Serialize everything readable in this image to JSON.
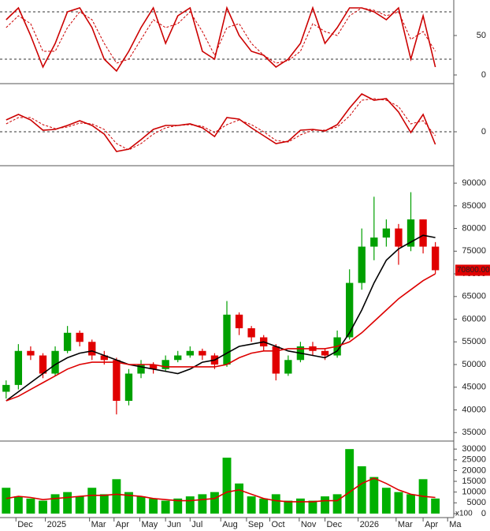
{
  "chart_data": [
    {
      "type": "line",
      "ylim": [
        -9,
        93
      ],
      "yticks": [
        0,
        50
      ],
      "levels": [
        20,
        80
      ],
      "series": [
        {
          "color": "#cc0000",
          "values": [
            70,
            85,
            50,
            10,
            40,
            80,
            85,
            60,
            20,
            5,
            30,
            60,
            85,
            40,
            75,
            85,
            30,
            20,
            85,
            50,
            30,
            25,
            10,
            20,
            40,
            85,
            40,
            60,
            85,
            85,
            80,
            70,
            85,
            20,
            75,
            10
          ]
        },
        {
          "color": "#cc0000",
          "dashed": true,
          "values": [
            60,
            75,
            65,
            30,
            30,
            60,
            80,
            70,
            40,
            15,
            20,
            45,
            70,
            60,
            65,
            80,
            55,
            25,
            60,
            65,
            40,
            25,
            15,
            18,
            30,
            65,
            55,
            50,
            75,
            85,
            82,
            75,
            80,
            45,
            55,
            30
          ]
        }
      ]
    },
    {
      "type": "line",
      "ylim": [
        -4.1,
        5.9
      ],
      "yticks": [
        0
      ],
      "levels": [
        0
      ],
      "series": [
        {
          "color": "#cc0000",
          "values": [
            1.5,
            2.2,
            1.5,
            0.2,
            0.3,
            0.8,
            1.4,
            0.8,
            -0.3,
            -2.5,
            -2.2,
            -1.0,
            0.3,
            0.8,
            0.8,
            1.0,
            0.5,
            -0.6,
            1.8,
            1.6,
            0.5,
            -0.5,
            -1.5,
            -1.2,
            0.2,
            0.3,
            0.1,
            0.9,
            3.0,
            4.8,
            4.0,
            4.2,
            2.5,
            -0.1,
            2.2,
            -1.6
          ]
        },
        {
          "color": "#cc0000",
          "dashed": true,
          "values": [
            1.0,
            1.8,
            1.8,
            0.9,
            0.4,
            0.6,
            1.1,
            1.0,
            0.3,
            -1.5,
            -2.3,
            -1.5,
            -0.3,
            0.5,
            0.8,
            0.9,
            0.7,
            -0.1,
            0.9,
            1.5,
            0.9,
            0.0,
            -1.1,
            -1.3,
            -0.4,
            0.2,
            0.2,
            0.6,
            2.0,
            4.0,
            4.2,
            4.0,
            3.2,
            1.0,
            1.4,
            -0.5
          ]
        }
      ]
    },
    {
      "type": "candlestick",
      "ylim": [
        33300,
        93500
      ],
      "yticks": [
        35000,
        40000,
        45000,
        50000,
        55000,
        60000,
        65000,
        70000,
        75000,
        80000,
        85000,
        90000
      ],
      "up_color": "#00a000",
      "down_color": "#e00000",
      "open": [
        44000,
        45500,
        53000,
        52000,
        48000,
        53000,
        57000,
        55000,
        52000,
        51000,
        42000,
        48000,
        50000,
        49000,
        51000,
        52000,
        53000,
        52000,
        50000,
        61000,
        58000,
        56000,
        54000,
        48000,
        51000,
        54000,
        53000,
        52000,
        56000,
        68000,
        76000,
        78000,
        80000,
        76000,
        82000,
        76000
      ],
      "high": [
        46500,
        54500,
        54000,
        52500,
        54000,
        58500,
        57500,
        55500,
        53000,
        51500,
        49000,
        51000,
        50500,
        52000,
        53000,
        54000,
        53500,
        52500,
        64000,
        61500,
        58500,
        56500,
        54500,
        52000,
        55000,
        55000,
        53500,
        57500,
        71000,
        80000,
        87000,
        82000,
        81000,
        88000,
        82000,
        77000
      ],
      "low": [
        42500,
        44500,
        51000,
        47000,
        47500,
        52500,
        54000,
        51000,
        50000,
        39000,
        41000,
        47000,
        48000,
        48500,
        50500,
        51500,
        51000,
        49000,
        49500,
        56500,
        55000,
        53000,
        46500,
        47500,
        50500,
        52000,
        51000,
        51500,
        55500,
        66500,
        73000,
        76000,
        72000,
        75000,
        74500,
        70000
      ],
      "close": [
        45500,
        53000,
        52000,
        48000,
        53000,
        57000,
        55000,
        52000,
        51000,
        42000,
        48000,
        50000,
        49000,
        51000,
        52000,
        53000,
        52000,
        50000,
        61000,
        58000,
        56000,
        54000,
        48000,
        51000,
        54000,
        53000,
        52000,
        56000,
        68000,
        76000,
        78000,
        80000,
        76000,
        82000,
        76000,
        70800
      ],
      "last_price": {
        "value": 70800,
        "label": "70800.00"
      },
      "series": [
        {
          "color": "#000000",
          "values": [
            42000,
            44000,
            46000,
            48000,
            50000,
            51500,
            52500,
            53000,
            52000,
            51000,
            50000,
            49500,
            49000,
            48500,
            48000,
            49000,
            50500,
            51000,
            52500,
            54000,
            54500,
            55000,
            54000,
            53000,
            52500,
            52000,
            51500,
            53000,
            57000,
            62000,
            68000,
            73000,
            75500,
            77000,
            78500,
            78000
          ]
        },
        {
          "color": "#dd0000",
          "values": [
            42000,
            43000,
            44500,
            46000,
            47500,
            49000,
            50000,
            50500,
            50500,
            50500,
            50000,
            50000,
            50000,
            49500,
            49500,
            49500,
            49500,
            49500,
            50000,
            51500,
            52500,
            53000,
            53000,
            53500,
            53500,
            53500,
            53500,
            54000,
            55000,
            57000,
            59500,
            62000,
            64500,
            66500,
            68500,
            70000
          ]
        }
      ]
    },
    {
      "type": "bar",
      "ylim": [
        -1500,
        33000
      ],
      "yticks": [
        0,
        5000,
        10000,
        15000,
        20000,
        25000,
        30000
      ],
      "unit_label": "x100",
      "color": "#00b000",
      "x": [
        0,
        1,
        2,
        3,
        4,
        5,
        6,
        7,
        8,
        9,
        10,
        11,
        12,
        13,
        14,
        15,
        16,
        17,
        18,
        19,
        20,
        21,
        22,
        23,
        24,
        25,
        26,
        27,
        28,
        29,
        30,
        31,
        32,
        33,
        34,
        35
      ],
      "xlim": [
        -0.5,
        36.5
      ],
      "xticks": [
        {
          "value": 0.8,
          "label": "Dec"
        },
        {
          "value": 3.2,
          "label": "2025"
        },
        {
          "value": 6.8,
          "label": "Mar"
        },
        {
          "value": 8.8,
          "label": "Apr"
        },
        {
          "value": 10.9,
          "label": "May"
        },
        {
          "value": 13,
          "label": "Jun"
        },
        {
          "value": 15,
          "label": "Jul"
        },
        {
          "value": 17.5,
          "label": "Aug"
        },
        {
          "value": 19.6,
          "label": "Sep"
        },
        {
          "value": 21.5,
          "label": "Oct"
        },
        {
          "value": 23.9,
          "label": "Nov"
        },
        {
          "value": 26,
          "label": "Dec"
        },
        {
          "value": 28.7,
          "label": "2026"
        },
        {
          "value": 31.8,
          "label": "Mar"
        },
        {
          "value": 34,
          "label": "Apr"
        },
        {
          "value": 36,
          "label": "Ma"
        }
      ],
      "values": [
        12000,
        8000,
        7000,
        6000,
        9000,
        10000,
        8000,
        12000,
        9000,
        16000,
        10000,
        8000,
        7000,
        6000,
        7000,
        8000,
        9000,
        10000,
        26000,
        14000,
        8000,
        7000,
        9000,
        6000,
        7000,
        6000,
        8000,
        9000,
        30000,
        22000,
        17000,
        12000,
        10000,
        9000,
        16000,
        7000
      ],
      "series": [
        {
          "color": "#dd0000",
          "values": [
            7000,
            8000,
            7500,
            6500,
            7000,
            7500,
            8000,
            8500,
            8500,
            9000,
            8500,
            8000,
            7000,
            6500,
            6000,
            6000,
            6500,
            7000,
            10000,
            11000,
            9000,
            7000,
            6000,
            5500,
            5500,
            5500,
            6000,
            6000,
            10000,
            14000,
            16500,
            14000,
            11000,
            9000,
            8000,
            7500
          ]
        }
      ]
    }
  ]
}
